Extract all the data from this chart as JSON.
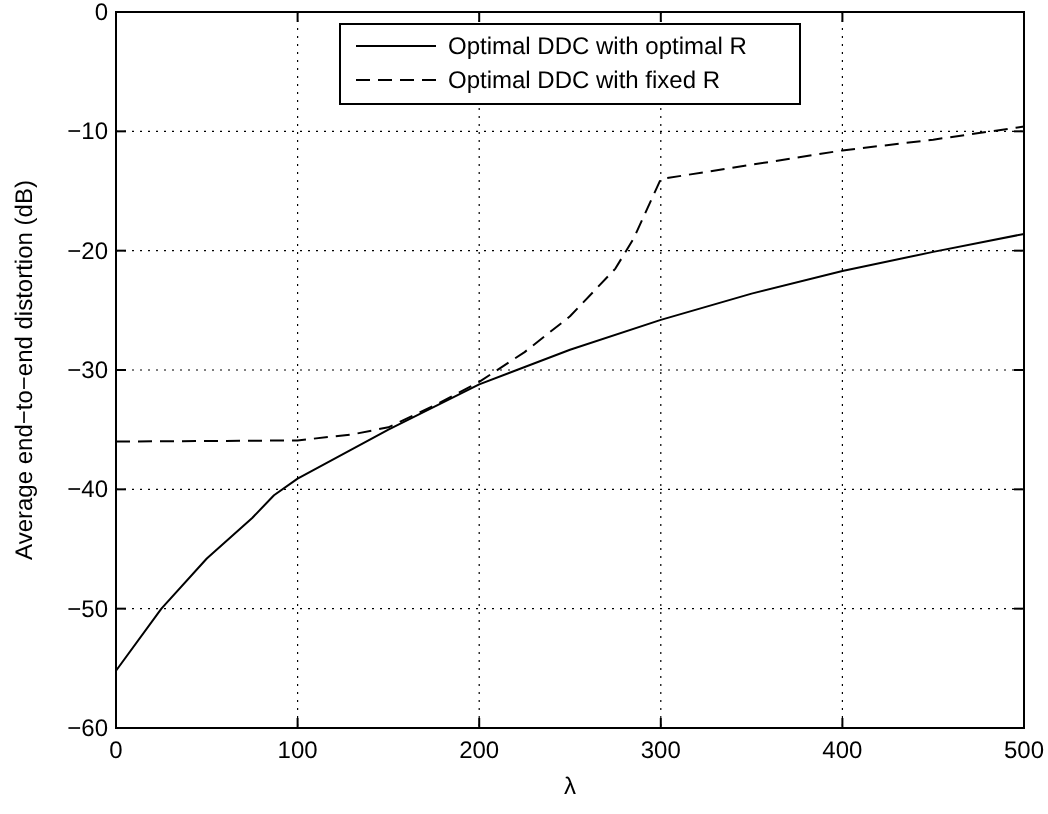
{
  "chart_data": {
    "type": "line",
    "xlabel": "λ",
    "ylabel": "Average end−to−end distortion (dB)",
    "xlim": [
      0,
      500
    ],
    "ylim": [
      -60,
      0
    ],
    "xticks": [
      0,
      100,
      200,
      300,
      400,
      500
    ],
    "yticks": [
      -60,
      -50,
      -40,
      -30,
      -20,
      -10,
      0
    ],
    "grid": true,
    "legend": "top",
    "series": [
      {
        "name": "Optimal DDC with optimal R",
        "color": "#000000",
        "line_style": "solid",
        "x": [
          0,
          25,
          50,
          75,
          87,
          100,
          150,
          200,
          250,
          300,
          350,
          400,
          450,
          500
        ],
        "values": [
          -55.2,
          -50,
          -45.8,
          -42.4,
          -40.5,
          -39.1,
          -35,
          -31.2,
          -28.3,
          -25.8,
          -23.6,
          -21.7,
          -20.1,
          -18.6
        ]
      },
      {
        "name": "Optimal DDC with fixed R",
        "color": "#000000",
        "line_style": "dashed",
        "x": [
          0,
          100,
          130,
          150,
          175,
          200,
          225,
          250,
          275,
          285,
          300,
          350,
          400,
          450,
          500
        ],
        "values": [
          -36,
          -35.9,
          -35.4,
          -34.8,
          -33,
          -31,
          -28.5,
          -25.5,
          -21.5,
          -19,
          -14,
          -12.8,
          -11.6,
          -10.7,
          -9.6
        ]
      }
    ]
  }
}
